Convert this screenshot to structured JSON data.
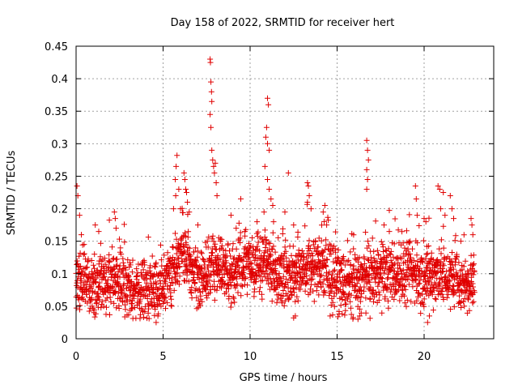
{
  "chart_data": {
    "type": "scatter",
    "title": "Day 158 of 2022, SRMTID for receiver hert",
    "xlabel": "GPS time / hours",
    "ylabel": "SRMTID / TECUs",
    "xlim": [
      0,
      24
    ],
    "ylim": [
      0,
      0.45
    ],
    "xticks": [
      "0",
      "5",
      "10",
      "15",
      "20"
    ],
    "yticks": [
      "0",
      "0.05",
      "0.1",
      "0.15",
      "0.2",
      "0.25",
      "0.3",
      "0.35",
      "0.4",
      "0.45"
    ],
    "grid": true,
    "marker": "+",
    "color": "#e00000",
    "x_end": 22.9,
    "baseline": [
      [
        0.0,
        0.085
      ],
      [
        0.5,
        0.09
      ],
      [
        1.0,
        0.08
      ],
      [
        1.5,
        0.085
      ],
      [
        2.0,
        0.085
      ],
      [
        2.5,
        0.09
      ],
      [
        3.0,
        0.075
      ],
      [
        3.5,
        0.075
      ],
      [
        4.0,
        0.08
      ],
      [
        4.5,
        0.075
      ],
      [
        5.0,
        0.08
      ],
      [
        5.5,
        0.1
      ],
      [
        6.0,
        0.14
      ],
      [
        6.5,
        0.11
      ],
      [
        7.0,
        0.09
      ],
      [
        7.5,
        0.1
      ],
      [
        8.0,
        0.12
      ],
      [
        8.5,
        0.1
      ],
      [
        9.0,
        0.1
      ],
      [
        9.5,
        0.11
      ],
      [
        10.0,
        0.115
      ],
      [
        10.5,
        0.11
      ],
      [
        11.0,
        0.12
      ],
      [
        11.5,
        0.095
      ],
      [
        12.0,
        0.1
      ],
      [
        12.5,
        0.1
      ],
      [
        13.0,
        0.11
      ],
      [
        13.5,
        0.11
      ],
      [
        14.0,
        0.11
      ],
      [
        14.5,
        0.1
      ],
      [
        15.0,
        0.09
      ],
      [
        15.5,
        0.08
      ],
      [
        16.0,
        0.085
      ],
      [
        16.5,
        0.09
      ],
      [
        17.0,
        0.095
      ],
      [
        17.5,
        0.1
      ],
      [
        18.0,
        0.1
      ],
      [
        18.5,
        0.1
      ],
      [
        19.0,
        0.1
      ],
      [
        19.5,
        0.1
      ],
      [
        20.0,
        0.09
      ],
      [
        20.5,
        0.1
      ],
      [
        21.0,
        0.1
      ],
      [
        21.5,
        0.09
      ],
      [
        22.0,
        0.085
      ],
      [
        22.9,
        0.085
      ]
    ],
    "spikes": [
      {
        "x": 0.05,
        "y": 0.235
      },
      {
        "x": 0.1,
        "y": 0.22
      },
      {
        "x": 0.2,
        "y": 0.19
      },
      {
        "x": 0.3,
        "y": 0.16
      },
      {
        "x": 1.1,
        "y": 0.175
      },
      {
        "x": 1.3,
        "y": 0.165
      },
      {
        "x": 2.2,
        "y": 0.195
      },
      {
        "x": 2.25,
        "y": 0.185
      },
      {
        "x": 2.3,
        "y": 0.17
      },
      {
        "x": 4.6,
        "y": 0.025
      },
      {
        "x": 4.7,
        "y": 0.035
      },
      {
        "x": 5.6,
        "y": 0.2
      },
      {
        "x": 5.7,
        "y": 0.245
      },
      {
        "x": 5.75,
        "y": 0.265
      },
      {
        "x": 5.8,
        "y": 0.282
      },
      {
        "x": 5.9,
        "y": 0.23
      },
      {
        "x": 6.0,
        "y": 0.2
      },
      {
        "x": 6.2,
        "y": 0.255
      },
      {
        "x": 6.25,
        "y": 0.245
      },
      {
        "x": 6.3,
        "y": 0.23
      },
      {
        "x": 6.35,
        "y": 0.225
      },
      {
        "x": 6.4,
        "y": 0.21
      },
      {
        "x": 6.5,
        "y": 0.195
      },
      {
        "x": 7.0,
        "y": 0.175
      },
      {
        "x": 7.7,
        "y": 0.43
      },
      {
        "x": 7.72,
        "y": 0.425
      },
      {
        "x": 7.75,
        "y": 0.395
      },
      {
        "x": 7.78,
        "y": 0.38
      },
      {
        "x": 7.8,
        "y": 0.365
      },
      {
        "x": 7.7,
        "y": 0.345
      },
      {
        "x": 7.75,
        "y": 0.325
      },
      {
        "x": 7.8,
        "y": 0.29
      },
      {
        "x": 7.85,
        "y": 0.275
      },
      {
        "x": 7.9,
        "y": 0.265
      },
      {
        "x": 7.95,
        "y": 0.255
      },
      {
        "x": 8.0,
        "y": 0.27
      },
      {
        "x": 8.05,
        "y": 0.24
      },
      {
        "x": 8.1,
        "y": 0.22
      },
      {
        "x": 8.9,
        "y": 0.19
      },
      {
        "x": 9.2,
        "y": 0.17
      },
      {
        "x": 9.7,
        "y": 0.165
      },
      {
        "x": 10.4,
        "y": 0.18
      },
      {
        "x": 10.8,
        "y": 0.195
      },
      {
        "x": 11.0,
        "y": 0.37
      },
      {
        "x": 11.05,
        "y": 0.36
      },
      {
        "x": 10.95,
        "y": 0.325
      },
      {
        "x": 10.9,
        "y": 0.31
      },
      {
        "x": 11.0,
        "y": 0.3
      },
      {
        "x": 11.1,
        "y": 0.29
      },
      {
        "x": 10.85,
        "y": 0.265
      },
      {
        "x": 11.0,
        "y": 0.245
      },
      {
        "x": 11.1,
        "y": 0.23
      },
      {
        "x": 11.2,
        "y": 0.215
      },
      {
        "x": 11.3,
        "y": 0.205
      },
      {
        "x": 11.35,
        "y": 0.18
      },
      {
        "x": 12.2,
        "y": 0.255
      },
      {
        "x": 12.0,
        "y": 0.195
      },
      {
        "x": 12.5,
        "y": 0.175
      },
      {
        "x": 12.6,
        "y": 0.035
      },
      {
        "x": 12.5,
        "y": 0.032
      },
      {
        "x": 13.3,
        "y": 0.24
      },
      {
        "x": 13.35,
        "y": 0.235
      },
      {
        "x": 13.4,
        "y": 0.22
      },
      {
        "x": 13.3,
        "y": 0.21
      },
      {
        "x": 13.5,
        "y": 0.2
      },
      {
        "x": 14.3,
        "y": 0.205
      },
      {
        "x": 14.2,
        "y": 0.195
      },
      {
        "x": 14.4,
        "y": 0.175
      },
      {
        "x": 14.6,
        "y": 0.035
      },
      {
        "x": 16.2,
        "y": 0.03
      },
      {
        "x": 16.3,
        "y": 0.035
      },
      {
        "x": 16.7,
        "y": 0.305
      },
      {
        "x": 16.75,
        "y": 0.29
      },
      {
        "x": 16.8,
        "y": 0.275
      },
      {
        "x": 16.7,
        "y": 0.26
      },
      {
        "x": 16.75,
        "y": 0.245
      },
      {
        "x": 16.7,
        "y": 0.23
      },
      {
        "x": 17.7,
        "y": 0.175
      },
      {
        "x": 18.0,
        "y": 0.165
      },
      {
        "x": 19.5,
        "y": 0.235
      },
      {
        "x": 19.55,
        "y": 0.215
      },
      {
        "x": 19.6,
        "y": 0.19
      },
      {
        "x": 20.0,
        "y": 0.185
      },
      {
        "x": 20.1,
        "y": 0.18
      },
      {
        "x": 20.3,
        "y": 0.035
      },
      {
        "x": 20.2,
        "y": 0.025
      },
      {
        "x": 20.8,
        "y": 0.235
      },
      {
        "x": 20.9,
        "y": 0.23
      },
      {
        "x": 21.1,
        "y": 0.225
      },
      {
        "x": 20.95,
        "y": 0.2
      },
      {
        "x": 21.2,
        "y": 0.19
      },
      {
        "x": 21.5,
        "y": 0.22
      },
      {
        "x": 21.6,
        "y": 0.2
      },
      {
        "x": 21.7,
        "y": 0.185
      },
      {
        "x": 22.7,
        "y": 0.185
      },
      {
        "x": 22.75,
        "y": 0.175
      },
      {
        "x": 22.8,
        "y": 0.16
      }
    ]
  }
}
